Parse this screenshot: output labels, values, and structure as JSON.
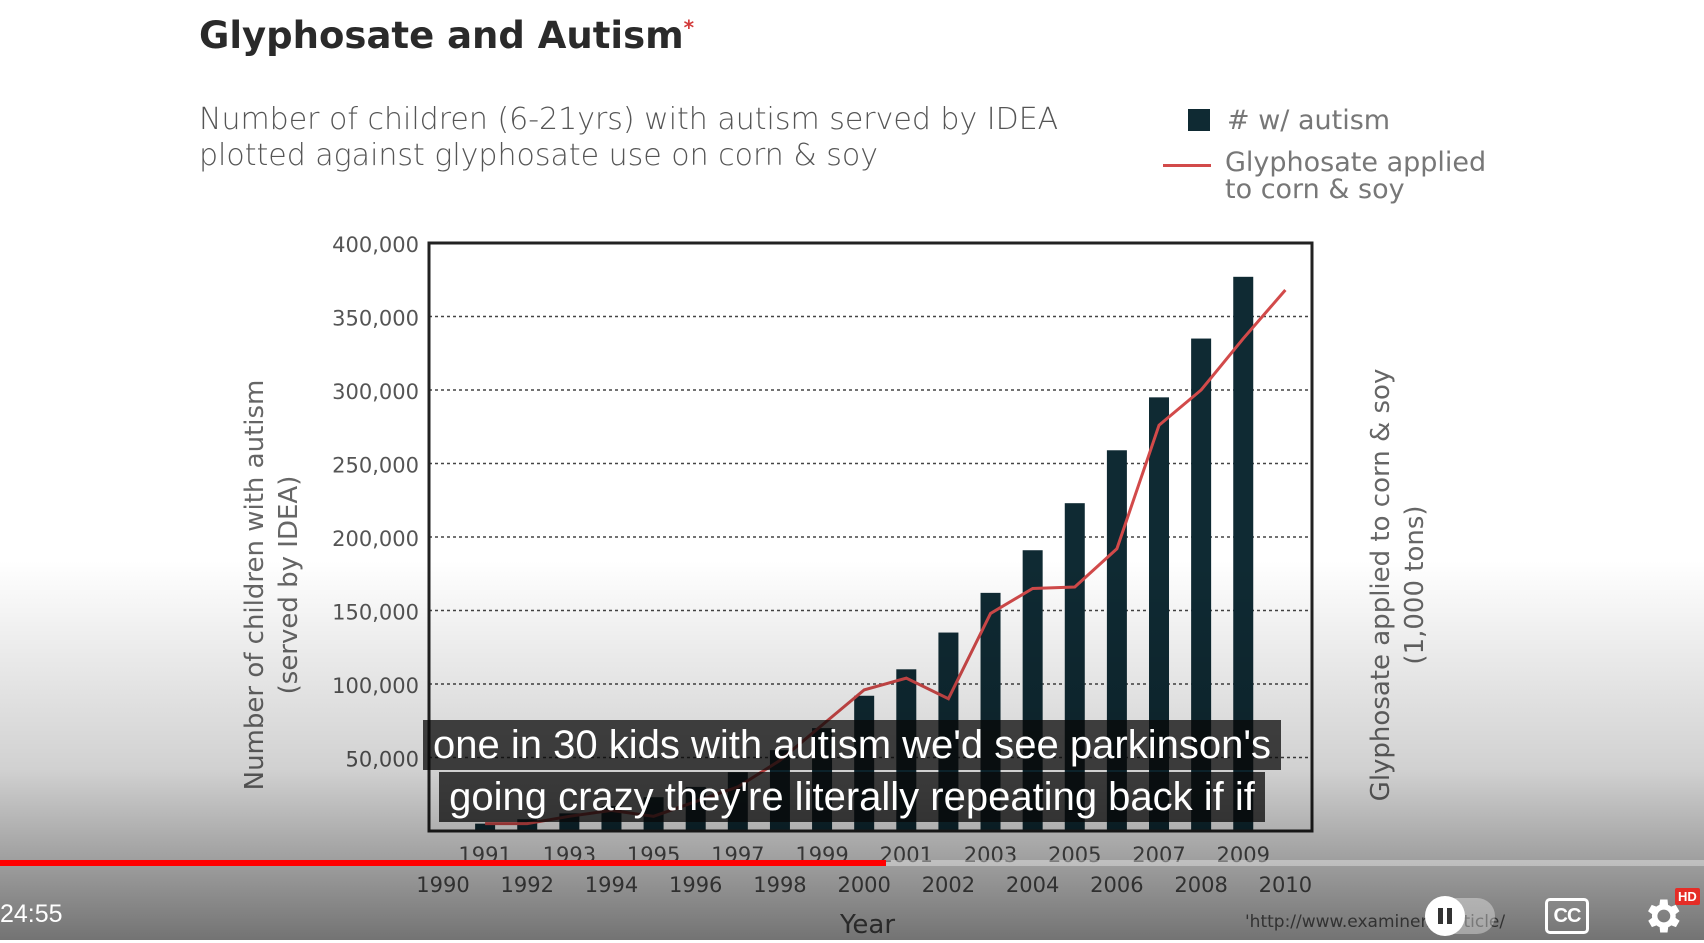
{
  "slide": {
    "title": "Glyphosate and Autism",
    "title_marker": "*",
    "subtitle_line1": "Number of children (6-21yrs) with autism served by IDEA",
    "subtitle_line2": "plotted against glyphosate use on corn & soy",
    "legend_bar_label": "# w/ autism",
    "legend_line_label_1": "Glyphosate applied",
    "legend_line_label_2": "to corn & soy",
    "ylabel_left_1": "Number of children with autism",
    "ylabel_left_2": "(served by IDEA)",
    "ylabel_right_1": "Glyphosate applied to corn & soy",
    "ylabel_right_2": "(1,000 tons)",
    "xlabel": "Year",
    "source": "'http://www.examiner.c",
    "source_tail": "article/"
  },
  "chart_data": {
    "type": "bar",
    "title": "Glyphosate and Autism",
    "ylabel": "Number of children with autism (served by IDEA)",
    "y2label": "Glyphosate applied to corn & soy (1,000 tons)",
    "xlabel": "Year",
    "ylim": [
      0,
      400000
    ],
    "yticks": [
      "400,000",
      "350,000",
      "300,000",
      "250,000",
      "200,000",
      "150,000",
      "100,000",
      "50,000"
    ],
    "y_tick_values": [
      400000,
      350000,
      300000,
      250000,
      200000,
      150000,
      100000,
      50000
    ],
    "bar_x_labels": [
      "1991",
      "1993",
      "1995",
      "1997",
      "1999",
      "2001",
      "2003",
      "2005",
      "2007",
      "2009"
    ],
    "line_x_labels": [
      "1990",
      "1992",
      "1994",
      "1996",
      "1998",
      "2000",
      "2002",
      "2004",
      "2006",
      "2008",
      "2010"
    ],
    "grid": true,
    "legend": "top-right",
    "series": [
      {
        "name": "# w/ autism",
        "kind": "bar",
        "color": "#0f2a33",
        "x": [
          1991,
          1992,
          1993,
          1994,
          1995,
          1996,
          1997,
          1998,
          1999,
          2000,
          2001,
          2002,
          2003,
          2004,
          2005,
          2006,
          2007,
          2008,
          2009
        ],
        "values": [
          5000,
          8000,
          12000,
          17000,
          23000,
          30000,
          40000,
          55000,
          70000,
          92000,
          110000,
          135000,
          162000,
          191000,
          223000,
          259000,
          295000,
          335000,
          377000
        ]
      },
      {
        "name": "Glyphosate applied to corn & soy",
        "kind": "line",
        "color": "#d24a4a",
        "x": [
          1991,
          1992,
          1993,
          1994,
          1995,
          1996,
          1997,
          1998,
          1999,
          2000,
          2001,
          2002,
          2003,
          2004,
          2005,
          2006,
          2007,
          2008,
          2009,
          2010
        ],
        "values": [
          5000,
          5000,
          10000,
          14000,
          10000,
          20000,
          30000,
          48000,
          72000,
          96000,
          104000,
          90000,
          148000,
          165000,
          166000,
          192000,
          276000,
          300000,
          335000,
          368000
        ]
      }
    ]
  },
  "player": {
    "caption_line1": "one in 30 kids with autism we'd see parkinson's",
    "caption_line2": "going crazy they're literally repeating back if if",
    "time": "24:55",
    "progress": 0.52,
    "cc_label": "CC",
    "hd_label": "HD",
    "accent": "#ff0000"
  }
}
